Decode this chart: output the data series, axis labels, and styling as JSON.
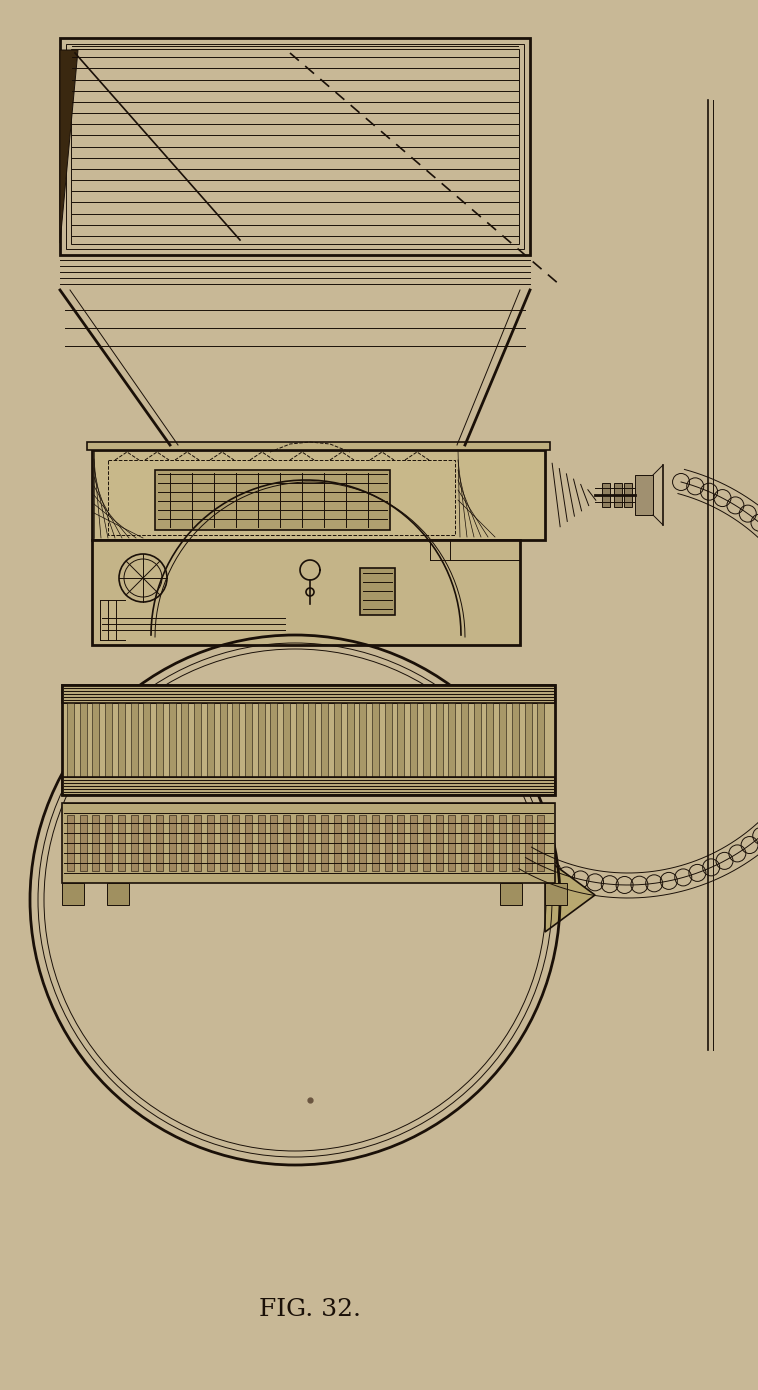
{
  "bg_color": "#c8b896",
  "line_color": "#1a1008",
  "caption": "FIG. 32.",
  "fig_width": 7.58,
  "fig_height": 13.9,
  "dpi": 100
}
